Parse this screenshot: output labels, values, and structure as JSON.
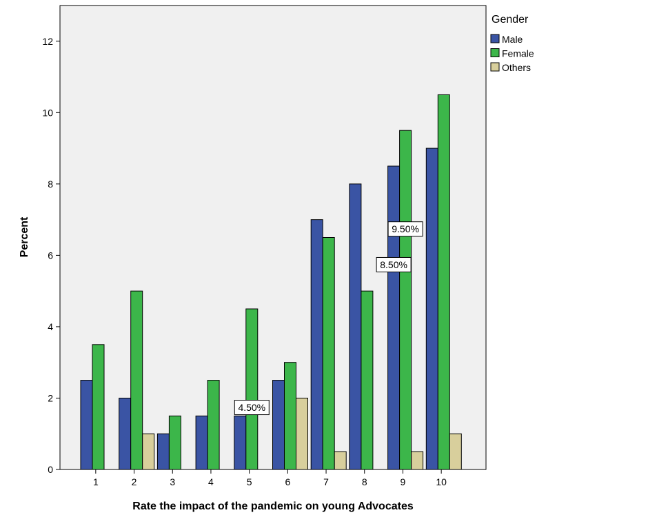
{
  "chart_data": {
    "type": "bar",
    "xlabel": "Rate the impact of the pandemic on young Advocates",
    "ylabel": "Percent",
    "ylim": [
      0,
      13
    ],
    "yticks": [
      0,
      2,
      4,
      6,
      8,
      10,
      12
    ],
    "categories": [
      "1",
      "2",
      "3",
      "4",
      "5",
      "6",
      "7",
      "8",
      "9",
      "10"
    ],
    "legend_title": "Gender",
    "legend_position": "top-right, outside plot",
    "grid": false,
    "series": [
      {
        "name": "Male",
        "color": "#3a54a4",
        "values": [
          2.5,
          2.0,
          1.0,
          1.5,
          1.5,
          2.5,
          7.0,
          8.0,
          8.5,
          9.0
        ]
      },
      {
        "name": "Female",
        "color": "#3cb64a",
        "values": [
          3.5,
          5.0,
          1.5,
          2.5,
          4.5,
          3.0,
          6.5,
          5.0,
          9.5,
          10.5
        ]
      },
      {
        "name": "Others",
        "color": "#d8cf9c",
        "values": [
          0,
          1.0,
          0,
          0,
          0,
          2.0,
          0.5,
          0,
          0.5,
          1.0
        ]
      }
    ],
    "annotations": [
      {
        "text": "4.50%",
        "category": "5",
        "series": "Female",
        "value": 4.5
      },
      {
        "text": "9.50%",
        "category": "9",
        "series": "Female",
        "value": 9.5
      },
      {
        "text": "8.50%",
        "category": "9",
        "series": "Male",
        "value": 8.5
      }
    ],
    "background_color": "#f0f0f0"
  }
}
